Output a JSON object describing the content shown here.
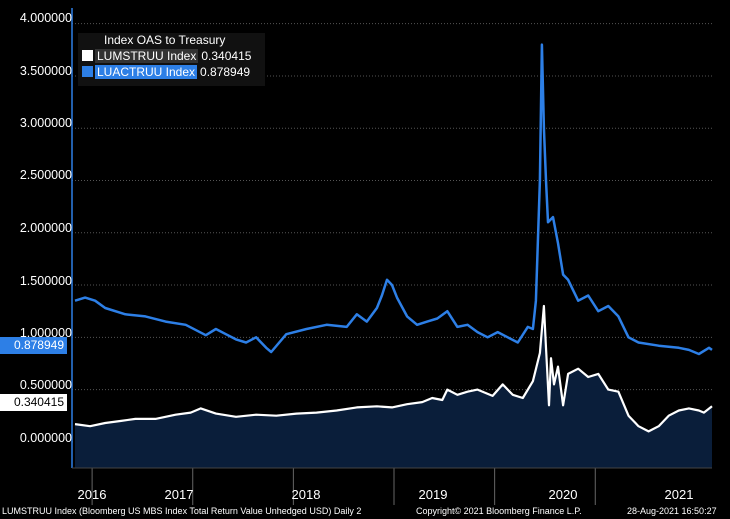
{
  "chart_data": {
    "type": "line",
    "title": "Index OAS to Treasury",
    "xlabel": "",
    "ylabel": "",
    "ylim": [
      -0.25,
      4.15
    ],
    "y_ticks": [
      "4.000000",
      "3.500000",
      "3.000000",
      "2.500000",
      "2.000000",
      "1.500000",
      "1.000000",
      "0.500000",
      "0.000000"
    ],
    "x_ticks": [
      "2016",
      "2017",
      "2018",
      "2019",
      "2020",
      "2021"
    ],
    "x_range": [
      "2015-11-01",
      "2021-08-28"
    ],
    "series": [
      {
        "name": "LUMSTRUU Index",
        "last_value": "0.340415",
        "color": "#ffffff",
        "fill": "#0a1e3a",
        "points": [
          [
            0.0,
            0.17
          ],
          [
            0.15,
            0.15
          ],
          [
            0.3,
            0.18
          ],
          [
            0.45,
            0.2
          ],
          [
            0.6,
            0.22
          ],
          [
            0.8,
            0.22
          ],
          [
            1.0,
            0.26
          ],
          [
            1.15,
            0.28
          ],
          [
            1.25,
            0.32
          ],
          [
            1.4,
            0.27
          ],
          [
            1.6,
            0.24
          ],
          [
            1.8,
            0.26
          ],
          [
            2.0,
            0.25
          ],
          [
            2.2,
            0.27
          ],
          [
            2.4,
            0.28
          ],
          [
            2.6,
            0.3
          ],
          [
            2.8,
            0.33
          ],
          [
            3.0,
            0.34
          ],
          [
            3.15,
            0.33
          ],
          [
            3.3,
            0.36
          ],
          [
            3.45,
            0.38
          ],
          [
            3.55,
            0.42
          ],
          [
            3.65,
            0.4
          ],
          [
            3.7,
            0.5
          ],
          [
            3.8,
            0.45
          ],
          [
            3.9,
            0.48
          ],
          [
            4.0,
            0.5
          ],
          [
            4.15,
            0.44
          ],
          [
            4.25,
            0.55
          ],
          [
            4.35,
            0.45
          ],
          [
            4.45,
            0.42
          ],
          [
            4.55,
            0.58
          ],
          [
            4.62,
            0.85
          ],
          [
            4.66,
            1.3
          ],
          [
            4.68,
            0.9
          ],
          [
            4.71,
            0.35
          ],
          [
            4.73,
            0.8
          ],
          [
            4.76,
            0.55
          ],
          [
            4.8,
            0.72
          ],
          [
            4.85,
            0.35
          ],
          [
            4.9,
            0.65
          ],
          [
            5.0,
            0.7
          ],
          [
            5.1,
            0.62
          ],
          [
            5.2,
            0.65
          ],
          [
            5.3,
            0.5
          ],
          [
            5.4,
            0.48
          ],
          [
            5.5,
            0.25
          ],
          [
            5.6,
            0.15
          ],
          [
            5.7,
            0.1
          ],
          [
            5.8,
            0.15
          ],
          [
            5.9,
            0.25
          ],
          [
            6.0,
            0.3
          ],
          [
            6.1,
            0.32
          ],
          [
            6.2,
            0.3
          ],
          [
            6.25,
            0.28
          ],
          [
            6.33,
            0.34
          ]
        ]
      },
      {
        "name": "LUACTRUU Index",
        "last_value": "0.878949",
        "color": "#2d7fe6",
        "points": [
          [
            0.0,
            1.35
          ],
          [
            0.1,
            1.38
          ],
          [
            0.2,
            1.35
          ],
          [
            0.3,
            1.28
          ],
          [
            0.5,
            1.22
          ],
          [
            0.7,
            1.2
          ],
          [
            0.9,
            1.15
          ],
          [
            1.1,
            1.12
          ],
          [
            1.3,
            1.02
          ],
          [
            1.4,
            1.08
          ],
          [
            1.5,
            1.03
          ],
          [
            1.6,
            0.98
          ],
          [
            1.7,
            0.95
          ],
          [
            1.8,
            1.0
          ],
          [
            1.9,
            0.9
          ],
          [
            1.95,
            0.86
          ],
          [
            2.1,
            1.03
          ],
          [
            2.3,
            1.08
          ],
          [
            2.5,
            1.12
          ],
          [
            2.7,
            1.1
          ],
          [
            2.8,
            1.22
          ],
          [
            2.9,
            1.15
          ],
          [
            3.0,
            1.28
          ],
          [
            3.05,
            1.4
          ],
          [
            3.1,
            1.55
          ],
          [
            3.15,
            1.5
          ],
          [
            3.2,
            1.38
          ],
          [
            3.3,
            1.2
          ],
          [
            3.4,
            1.12
          ],
          [
            3.5,
            1.15
          ],
          [
            3.6,
            1.18
          ],
          [
            3.7,
            1.25
          ],
          [
            3.8,
            1.1
          ],
          [
            3.9,
            1.12
          ],
          [
            4.0,
            1.05
          ],
          [
            4.1,
            1.0
          ],
          [
            4.2,
            1.05
          ],
          [
            4.3,
            1.0
          ],
          [
            4.4,
            0.95
          ],
          [
            4.5,
            1.1
          ],
          [
            4.55,
            1.08
          ],
          [
            4.58,
            1.35
          ],
          [
            4.62,
            2.5
          ],
          [
            4.64,
            3.8
          ],
          [
            4.66,
            3.0
          ],
          [
            4.68,
            2.5
          ],
          [
            4.7,
            2.1
          ],
          [
            4.75,
            2.15
          ],
          [
            4.8,
            1.9
          ],
          [
            4.85,
            1.6
          ],
          [
            4.9,
            1.55
          ],
          [
            5.0,
            1.35
          ],
          [
            5.1,
            1.4
          ],
          [
            5.2,
            1.25
          ],
          [
            5.3,
            1.3
          ],
          [
            5.4,
            1.2
          ],
          [
            5.5,
            1.0
          ],
          [
            5.6,
            0.95
          ],
          [
            5.8,
            0.92
          ],
          [
            6.0,
            0.9
          ],
          [
            6.1,
            0.88
          ],
          [
            6.2,
            0.84
          ],
          [
            6.3,
            0.9
          ],
          [
            6.33,
            0.88
          ]
        ]
      }
    ]
  },
  "legend": {
    "title": "Index OAS to Treasury",
    "items": [
      {
        "name": "LUMSTRUU Index",
        "value": "0.340415",
        "color": "#ffffff"
      },
      {
        "name": "LUACTRUU Index",
        "value": "0.878949",
        "color": "#2d7fe6"
      }
    ]
  },
  "markers": {
    "luactruu": "0.878949",
    "lumstruu": "0.340415"
  },
  "footer": {
    "left": "LUMSTRUU Index (Bloomberg US MBS Index Total Return Value Unhedged USD)  Daily 2",
    "center": "Copyright© 2021 Bloomberg Finance L.P.",
    "right": "28-Aug-2021 16:50:27"
  }
}
